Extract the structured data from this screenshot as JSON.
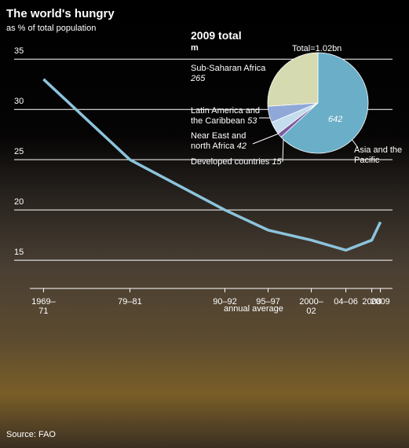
{
  "chart_data": [
    {
      "type": "line",
      "title": "The world's hungry",
      "subtitle": "as % of total population",
      "x": [
        1970,
        1980,
        1991,
        1996,
        2001,
        2005,
        2008,
        2009
      ],
      "values": [
        33,
        25,
        20,
        18,
        17,
        16,
        17,
        18.8
      ],
      "color": "#8cc4dc",
      "xlim": [
        1966.6,
        2010.4
      ],
      "xticks": [
        {
          "value": 1970,
          "label": "1969–71"
        },
        {
          "value": 1980,
          "label": "79–81"
        },
        {
          "value": 1991,
          "label": "90–92"
        },
        {
          "value": 1996,
          "label": "95–97"
        },
        {
          "value": 2001,
          "label": "2000–02"
        },
        {
          "value": 2005,
          "label": "04–06"
        },
        2008,
        2009
      ],
      "ylim": [
        12.2,
        36.5
      ],
      "yticks": [
        15,
        20,
        25,
        30,
        35
      ],
      "grid": true,
      "xlabel": "annual average",
      "source": "Source: FAO"
    },
    {
      "type": "pie",
      "title": "2009 total",
      "subtitle": "m",
      "annotation": "Total=1.02bn",
      "categories": [
        "Asia and the Pacific",
        "Developed countries",
        "Near East and north Africa",
        "Latin America and the Caribbean",
        "Sub-Saharan Africa"
      ],
      "values": [
        642,
        15,
        42,
        53,
        265
      ],
      "colors": [
        "#6aaec8",
        "#7d5aa0",
        "#c4dcec",
        "#8fa8d8",
        "#d6dab0"
      ]
    }
  ]
}
